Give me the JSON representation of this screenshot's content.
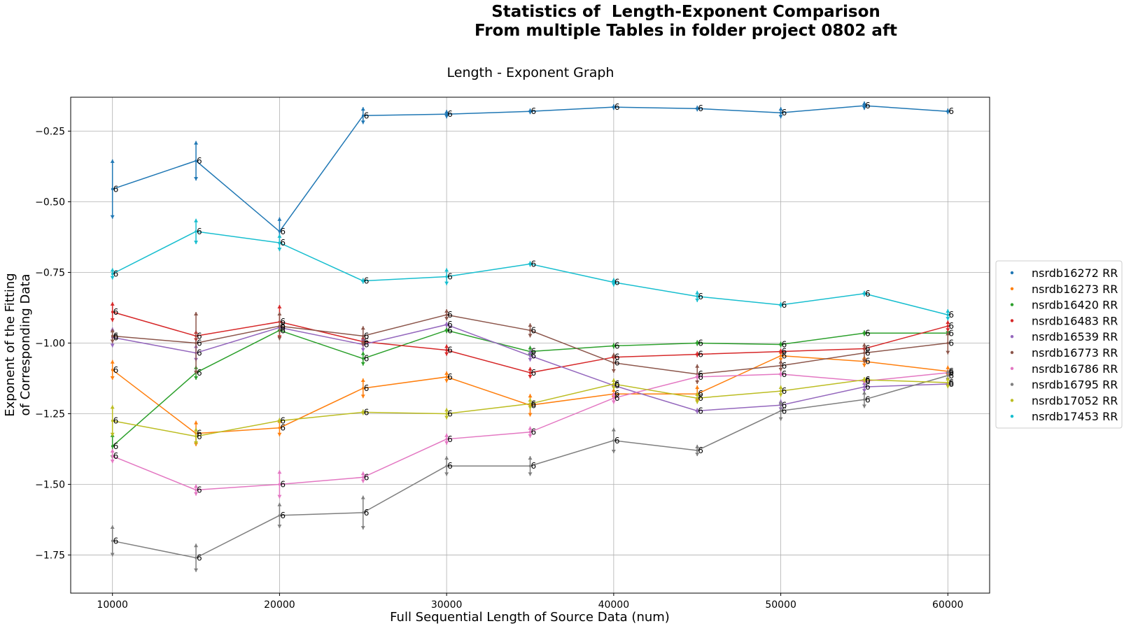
{
  "suptitle": {
    "line1": "Statistics of  Length-Exponent Comparison",
    "line2": "From multiple Tables in folder project 0802 aft"
  },
  "chart_data": {
    "type": "line",
    "title": "Length - Exponent Graph",
    "xlabel": "Full Sequential Length of Source Data (num)",
    "ylabel": [
      "Exponent of the Fitting",
      "of Corresponding Data"
    ],
    "xlim": [
      7500,
      62500
    ],
    "ylim": [
      -1.885,
      -0.13
    ],
    "xticks": [
      10000,
      20000,
      30000,
      40000,
      50000,
      60000
    ],
    "yticks": [
      -1.75,
      -1.5,
      -1.25,
      -1.0,
      -0.75,
      -0.5,
      -0.25
    ],
    "ytick_labels": [
      "−1.75",
      "−1.50",
      "−1.25",
      "−1.00",
      "−0.75",
      "−0.50",
      "−0.25"
    ],
    "grid": true,
    "legend_position": "right, outside the plot",
    "x": [
      10000,
      15000,
      20000,
      25000,
      30000,
      35000,
      40000,
      45000,
      50000,
      55000,
      60000
    ],
    "point_label": "6",
    "series": [
      {
        "name": "nsrdb16272 RR",
        "color": "#1f77b4",
        "values": [
          -0.455,
          -0.355,
          -0.605,
          -0.195,
          -0.19,
          -0.18,
          -0.165,
          -0.17,
          -0.185,
          -0.16,
          -0.18
        ],
        "err": [
          0.105,
          0.07,
          0.05,
          0.03,
          0.015,
          0.01,
          0.01,
          0.01,
          0.02,
          0.015,
          0.01
        ]
      },
      {
        "name": "nsrdb16273 RR",
        "color": "#ff7f0e",
        "values": [
          -1.095,
          -1.32,
          -1.3,
          -1.16,
          -1.12,
          -1.22,
          -1.18,
          -1.18,
          -1.045,
          -1.065,
          -1.1
        ],
        "err": [
          0.035,
          0.045,
          0.03,
          0.035,
          0.02,
          0.04,
          0.02,
          0.03,
          0.02,
          0.02,
          0.02
        ]
      },
      {
        "name": "nsrdb16420 RR",
        "color": "#2ca02c",
        "values": [
          -1.365,
          -1.105,
          -0.955,
          -1.055,
          -0.955,
          -1.03,
          -1.01,
          -1.0,
          -1.005,
          -0.965,
          -0.965
        ],
        "err": [
          0.045,
          0.025,
          0.01,
          0.025,
          0.01,
          0.02,
          0.01,
          0.01,
          0.01,
          0.01,
          0.005
        ]
      },
      {
        "name": "nsrdb16483 RR",
        "color": "#d62728",
        "values": [
          -0.89,
          -0.975,
          -0.925,
          -0.995,
          -1.025,
          -1.105,
          -1.05,
          -1.04,
          -1.03,
          -1.02,
          -0.94
        ],
        "err": [
          0.035,
          0.02,
          0.06,
          0.02,
          0.02,
          0.02,
          0.01,
          0.01,
          0.01,
          0.01,
          0.02
        ]
      },
      {
        "name": "nsrdb16539 RR",
        "color": "#9467bd",
        "values": [
          -0.98,
          -1.035,
          -0.945,
          -1.005,
          -0.935,
          -1.045,
          -1.15,
          -1.24,
          -1.22,
          -1.155,
          -1.145
        ],
        "err": [
          0.035,
          0.03,
          0.01,
          0.025,
          0.01,
          0.02,
          0.01,
          0.01,
          0.02,
          0.02,
          0.01
        ]
      },
      {
        "name": "nsrdb16773 RR",
        "color": "#8c564b",
        "values": [
          -0.975,
          -1.0,
          -0.94,
          -0.975,
          -0.9,
          -0.955,
          -1.07,
          -1.11,
          -1.08,
          -1.035,
          -1.0
        ],
        "err": [
          0.025,
          0.11,
          0.05,
          0.035,
          0.02,
          0.025,
          0.035,
          0.035,
          0.02,
          0.035,
          0.04
        ]
      },
      {
        "name": "nsrdb16786 RR",
        "color": "#e377c2",
        "values": [
          -1.4,
          -1.52,
          -1.5,
          -1.475,
          -1.34,
          -1.315,
          -1.195,
          -1.12,
          -1.11,
          -1.135,
          -1.105
        ],
        "err": [
          0.025,
          0.02,
          0.05,
          0.02,
          0.02,
          0.02,
          0.02,
          0.01,
          0.01,
          0.01,
          0.01
        ]
      },
      {
        "name": "nsrdb16795 RR",
        "color": "#7f7f7f",
        "values": [
          -1.7,
          -1.76,
          -1.61,
          -1.6,
          -1.435,
          -1.435,
          -1.345,
          -1.38,
          -1.24,
          -1.2,
          -1.115
        ],
        "err": [
          0.055,
          0.05,
          0.045,
          0.06,
          0.035,
          0.035,
          0.045,
          0.02,
          0.035,
          0.03,
          0.02
        ]
      },
      {
        "name": "nsrdb17052 RR",
        "color": "#bcbd22",
        "values": [
          -1.275,
          -1.33,
          -1.275,
          -1.245,
          -1.25,
          -1.215,
          -1.145,
          -1.195,
          -1.17,
          -1.13,
          -1.14
        ],
        "err": [
          0.055,
          0.03,
          0.01,
          0.01,
          0.02,
          0.02,
          0.02,
          0.02,
          0.02,
          0.01,
          0.02
        ]
      },
      {
        "name": "nsrdb17453 RR",
        "color": "#17becf",
        "values": [
          -0.755,
          -0.605,
          -0.645,
          -0.78,
          -0.765,
          -0.72,
          -0.785,
          -0.835,
          -0.865,
          -0.825,
          -0.9
        ],
        "err": [
          0.02,
          0.045,
          0.03,
          0.01,
          0.03,
          0.01,
          0.015,
          0.02,
          0.01,
          0.01,
          0.02
        ]
      }
    ]
  }
}
